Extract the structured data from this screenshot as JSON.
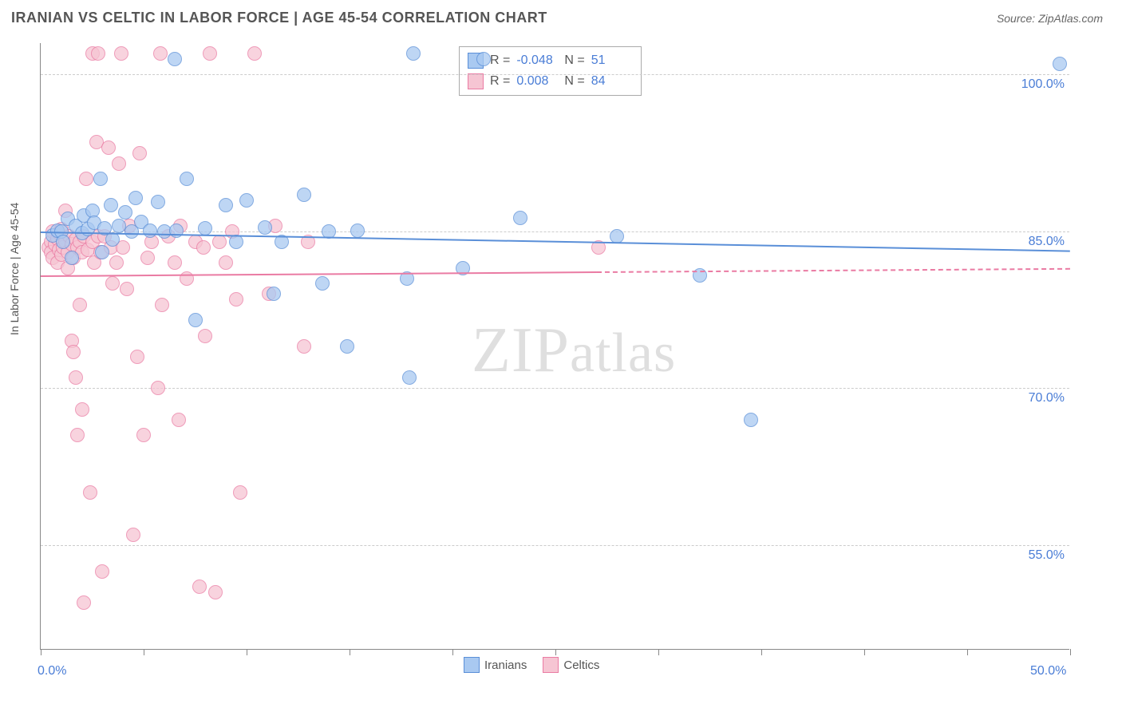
{
  "title": "IRANIAN VS CELTIC IN LABOR FORCE | AGE 45-54 CORRELATION CHART",
  "source": "Source: ZipAtlas.com",
  "ylabel": "In Labor Force | Age 45-54",
  "watermark": "ZIPatlas",
  "chart": {
    "type": "scatter",
    "xlim": [
      0,
      50
    ],
    "ylim": [
      45,
      103
    ],
    "background_color": "#ffffff",
    "grid_color": "#cccccc",
    "axis_color": "#888888",
    "tick_label_color": "#4a7dd6",
    "label_fontsize": 14,
    "tick_fontsize": 16,
    "y_gridlines": [
      55,
      70,
      85,
      100
    ],
    "ytick_labels": [
      "55.0%",
      "70.0%",
      "85.0%",
      "100.0%"
    ],
    "x_ticks": [
      0,
      5,
      10,
      15,
      20,
      25,
      30,
      35,
      40,
      45,
      50
    ],
    "xtick_labels_shown": {
      "0": "0.0%",
      "50": "50.0%"
    },
    "marker_radius": 9,
    "marker_opacity": 0.75
  },
  "series": [
    {
      "name": "Iranians",
      "color_fill": "#a9c9f1",
      "color_stroke": "#5a8fd8",
      "R": "-0.048",
      "N": "51",
      "trend": {
        "y_at_x0": 85.0,
        "y_at_xmax": 83.2,
        "x_solid_end": 50,
        "line_width": 2.5
      },
      "points": [
        [
          0.6,
          84.6
        ],
        [
          0.8,
          85.1
        ],
        [
          1.0,
          85.0
        ],
        [
          1.3,
          86.2
        ],
        [
          1.1,
          84.0
        ],
        [
          1.5,
          82.5
        ],
        [
          1.7,
          85.5
        ],
        [
          2.0,
          84.8
        ],
        [
          2.1,
          86.5
        ],
        [
          2.3,
          85.2
        ],
        [
          2.5,
          87.0
        ],
        [
          2.6,
          85.8
        ],
        [
          2.9,
          90.0
        ],
        [
          3.0,
          83.0
        ],
        [
          3.1,
          85.3
        ],
        [
          3.4,
          87.5
        ],
        [
          3.5,
          84.2
        ],
        [
          3.8,
          85.5
        ],
        [
          4.1,
          86.8
        ],
        [
          4.4,
          85.0
        ],
        [
          4.6,
          88.2
        ],
        [
          4.9,
          85.9
        ],
        [
          5.3,
          85.1
        ],
        [
          5.7,
          87.8
        ],
        [
          6.0,
          85.0
        ],
        [
          6.5,
          101.5
        ],
        [
          6.6,
          85.1
        ],
        [
          7.1,
          90.0
        ],
        [
          7.5,
          76.5
        ],
        [
          8.0,
          85.3
        ],
        [
          9.0,
          87.5
        ],
        [
          9.5,
          84.0
        ],
        [
          10.0,
          88.0
        ],
        [
          10.9,
          85.4
        ],
        [
          11.3,
          79.0
        ],
        [
          11.7,
          84.0
        ],
        [
          12.8,
          88.5
        ],
        [
          13.7,
          80.0
        ],
        [
          14.0,
          85.0
        ],
        [
          14.9,
          74.0
        ],
        [
          15.4,
          85.1
        ],
        [
          17.8,
          80.5
        ],
        [
          17.9,
          71.0
        ],
        [
          18.1,
          102.0
        ],
        [
          20.5,
          81.5
        ],
        [
          23.3,
          86.3
        ],
        [
          28.0,
          84.5
        ],
        [
          32.0,
          80.8
        ],
        [
          34.5,
          67.0
        ],
        [
          49.5,
          101.0
        ],
        [
          21.5,
          101.5
        ]
      ]
    },
    {
      "name": "Celtics",
      "color_fill": "#f6c5d3",
      "color_stroke": "#ea7ba3",
      "R": "0.008",
      "N": "84",
      "trend": {
        "y_at_x0": 80.8,
        "y_at_xmax": 81.5,
        "x_solid_end": 27,
        "line_width": 2.5
      },
      "points": [
        [
          0.4,
          83.5
        ],
        [
          0.5,
          84.0
        ],
        [
          0.5,
          83.0
        ],
        [
          0.6,
          82.5
        ],
        [
          0.6,
          85.0
        ],
        [
          0.7,
          83.8
        ],
        [
          0.8,
          84.3
        ],
        [
          0.8,
          82.0
        ],
        [
          0.9,
          84.8
        ],
        [
          0.9,
          83.2
        ],
        [
          1.0,
          82.8
        ],
        [
          1.0,
          85.2
        ],
        [
          1.1,
          83.5
        ],
        [
          1.2,
          87.0
        ],
        [
          1.2,
          84.0
        ],
        [
          1.3,
          83.0
        ],
        [
          1.3,
          81.5
        ],
        [
          1.4,
          84.5
        ],
        [
          1.5,
          83.8
        ],
        [
          1.5,
          74.5
        ],
        [
          1.6,
          73.5
        ],
        [
          1.6,
          82.5
        ],
        [
          1.7,
          71.0
        ],
        [
          1.7,
          84.2
        ],
        [
          1.8,
          65.5
        ],
        [
          1.8,
          83.5
        ],
        [
          1.9,
          78.0
        ],
        [
          1.9,
          84.0
        ],
        [
          2.0,
          68.0
        ],
        [
          2.0,
          83.0
        ],
        [
          2.1,
          49.5
        ],
        [
          2.1,
          84.5
        ],
        [
          2.2,
          90.0
        ],
        [
          2.3,
          83.2
        ],
        [
          2.4,
          60.0
        ],
        [
          2.5,
          84.0
        ],
        [
          2.5,
          102.0
        ],
        [
          2.6,
          82.0
        ],
        [
          2.7,
          93.5
        ],
        [
          2.8,
          102.0
        ],
        [
          2.8,
          84.5
        ],
        [
          2.9,
          83.0
        ],
        [
          3.0,
          52.5
        ],
        [
          3.1,
          84.5
        ],
        [
          3.3,
          93.0
        ],
        [
          3.4,
          83.5
        ],
        [
          3.5,
          80.0
        ],
        [
          3.7,
          82.0
        ],
        [
          3.8,
          91.5
        ],
        [
          3.9,
          102.0
        ],
        [
          4.0,
          83.5
        ],
        [
          4.2,
          79.5
        ],
        [
          4.3,
          85.5
        ],
        [
          4.5,
          56.0
        ],
        [
          4.7,
          73.0
        ],
        [
          4.8,
          92.5
        ],
        [
          5.0,
          65.5
        ],
        [
          5.2,
          82.5
        ],
        [
          5.4,
          84.0
        ],
        [
          5.7,
          70.0
        ],
        [
          5.8,
          102.0
        ],
        [
          5.9,
          78.0
        ],
        [
          6.2,
          84.5
        ],
        [
          6.5,
          82.0
        ],
        [
          6.7,
          67.0
        ],
        [
          6.8,
          85.5
        ],
        [
          7.1,
          80.5
        ],
        [
          7.5,
          84.0
        ],
        [
          7.7,
          51.0
        ],
        [
          7.9,
          83.5
        ],
        [
          8.0,
          75.0
        ],
        [
          8.2,
          102.0
        ],
        [
          8.5,
          50.5
        ],
        [
          8.7,
          84.0
        ],
        [
          9.0,
          82.0
        ],
        [
          9.3,
          85.0
        ],
        [
          9.5,
          78.5
        ],
        [
          9.7,
          60.0
        ],
        [
          10.4,
          102.0
        ],
        [
          11.1,
          79.0
        ],
        [
          11.4,
          85.5
        ],
        [
          12.8,
          74.0
        ],
        [
          13.0,
          84.0
        ],
        [
          27.1,
          83.5
        ]
      ]
    }
  ],
  "correlation_box": {
    "r_label": "R =",
    "n_label": "N ="
  },
  "legend": {
    "items": [
      "Iranians",
      "Celtics"
    ]
  }
}
